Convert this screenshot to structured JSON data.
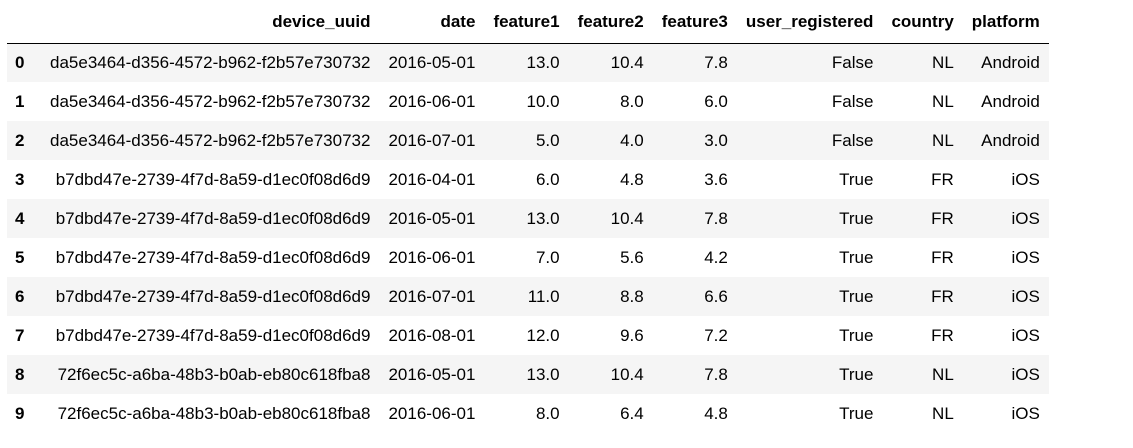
{
  "table": {
    "index_header": "",
    "columns": [
      "device_uuid",
      "date",
      "feature1",
      "feature2",
      "feature3",
      "user_registered",
      "country",
      "platform"
    ],
    "rows": [
      {
        "index": "0",
        "cells": [
          "da5e3464-d356-4572-b962-f2b57e730732",
          "2016-05-01",
          "13.0",
          "10.4",
          "7.8",
          "False",
          "NL",
          "Android"
        ]
      },
      {
        "index": "1",
        "cells": [
          "da5e3464-d356-4572-b962-f2b57e730732",
          "2016-06-01",
          "10.0",
          "8.0",
          "6.0",
          "False",
          "NL",
          "Android"
        ]
      },
      {
        "index": "2",
        "cells": [
          "da5e3464-d356-4572-b962-f2b57e730732",
          "2016-07-01",
          "5.0",
          "4.0",
          "3.0",
          "False",
          "NL",
          "Android"
        ]
      },
      {
        "index": "3",
        "cells": [
          "b7dbd47e-2739-4f7d-8a59-d1ec0f08d6d9",
          "2016-04-01",
          "6.0",
          "4.8",
          "3.6",
          "True",
          "FR",
          "iOS"
        ]
      },
      {
        "index": "4",
        "cells": [
          "b7dbd47e-2739-4f7d-8a59-d1ec0f08d6d9",
          "2016-05-01",
          "13.0",
          "10.4",
          "7.8",
          "True",
          "FR",
          "iOS"
        ]
      },
      {
        "index": "5",
        "cells": [
          "b7dbd47e-2739-4f7d-8a59-d1ec0f08d6d9",
          "2016-06-01",
          "7.0",
          "5.6",
          "4.2",
          "True",
          "FR",
          "iOS"
        ]
      },
      {
        "index": "6",
        "cells": [
          "b7dbd47e-2739-4f7d-8a59-d1ec0f08d6d9",
          "2016-07-01",
          "11.0",
          "8.8",
          "6.6",
          "True",
          "FR",
          "iOS"
        ]
      },
      {
        "index": "7",
        "cells": [
          "b7dbd47e-2739-4f7d-8a59-d1ec0f08d6d9",
          "2016-08-01",
          "12.0",
          "9.6",
          "7.2",
          "True",
          "FR",
          "iOS"
        ]
      },
      {
        "index": "8",
        "cells": [
          "72f6ec5c-a6ba-48b3-b0ab-eb80c618fba8",
          "2016-05-01",
          "13.0",
          "10.4",
          "7.8",
          "True",
          "NL",
          "iOS"
        ]
      },
      {
        "index": "9",
        "cells": [
          "72f6ec5c-a6ba-48b3-b0ab-eb80c618fba8",
          "2016-06-01",
          "8.0",
          "6.4",
          "4.8",
          "True",
          "NL",
          "iOS"
        ]
      }
    ]
  },
  "colors": {
    "stripe": "#f5f5f5",
    "background": "#ffffff",
    "header_rule": "#000000"
  }
}
